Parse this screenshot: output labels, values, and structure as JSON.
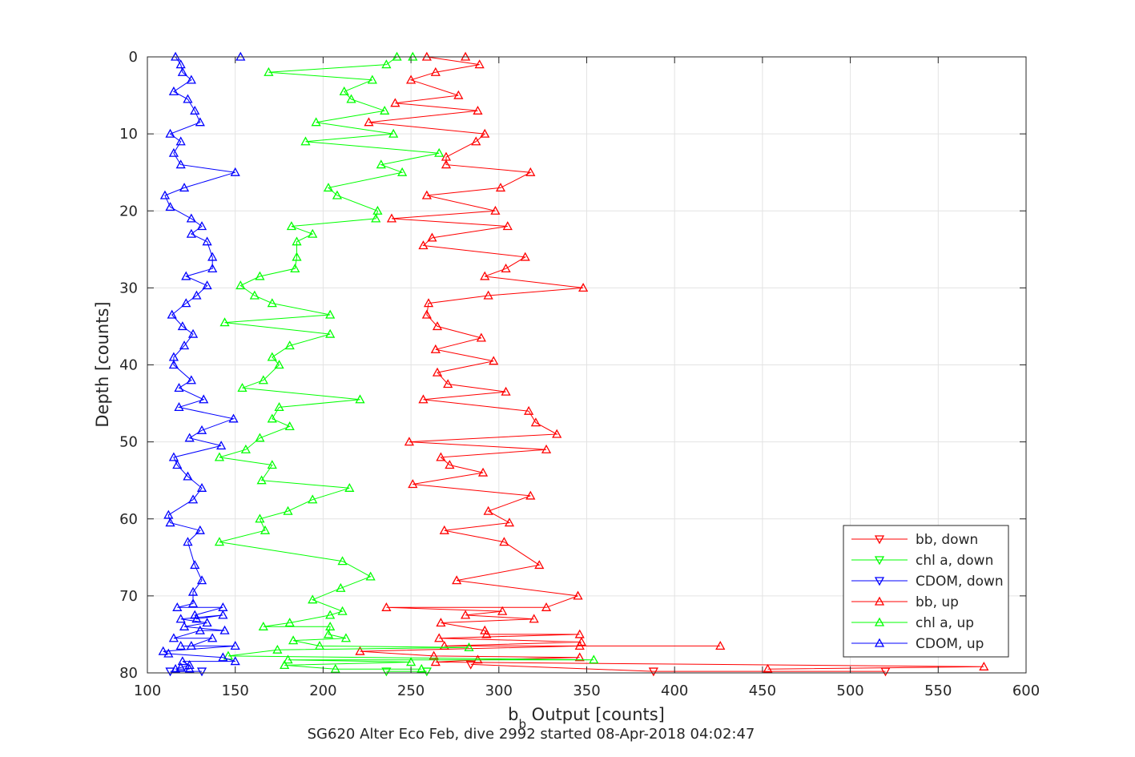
{
  "chart_data": {
    "type": "line",
    "title": "",
    "caption": "SG620 Alter Eco Feb, dive 2992 started 08-Apr-2018 04:02:47",
    "xlabel_main": "b",
    "xlabel_sub": "b",
    "xlabel_rest": " Output [counts]",
    "ylabel": "Depth [counts]",
    "xlim": [
      100,
      600
    ],
    "ylim": [
      0,
      80
    ],
    "y_reversed": true,
    "grid": true,
    "legend_position": "bottom-right",
    "xticks": [
      100,
      150,
      200,
      250,
      300,
      350,
      400,
      450,
      500,
      550,
      600
    ],
    "xtick_labels": [
      "100",
      "150",
      "200",
      "250",
      "300",
      "350",
      "400",
      "450",
      "500",
      "550",
      "600"
    ],
    "yticks": [
      0,
      10,
      20,
      30,
      40,
      50,
      60,
      70,
      80
    ],
    "ytick_labels": [
      "0",
      "10",
      "20",
      "30",
      "40",
      "50",
      "60",
      "70",
      "80"
    ],
    "series": [
      {
        "name": "bb, down",
        "color": "#ff0000",
        "marker": "triangle-down",
        "points": [
          [
            520,
            79.8
          ],
          [
            388,
            79.8
          ],
          [
            284,
            78.9
          ]
        ]
      },
      {
        "name": "chl a, down",
        "color": "#00ff00",
        "marker": "triangle-down",
        "points": [
          [
            259,
            79.8
          ],
          [
            236,
            79.8
          ]
        ]
      },
      {
        "name": "CDOM, down",
        "color": "#0000ff",
        "marker": "triangle-down",
        "points": [
          [
            113,
            79.8
          ],
          [
            131,
            79.8
          ]
        ]
      },
      {
        "name": "bb, up",
        "color": "#ff0000",
        "marker": "triangle-up",
        "points": [
          [
            281,
            0
          ],
          [
            259,
            0
          ],
          [
            289,
            1
          ],
          [
            264,
            2
          ],
          [
            250,
            3
          ],
          [
            277,
            5
          ],
          [
            241,
            6
          ],
          [
            288,
            7
          ],
          [
            226,
            8.5
          ],
          [
            292,
            10
          ],
          [
            287,
            11
          ],
          [
            270,
            13
          ],
          [
            270,
            14
          ],
          [
            318,
            15
          ],
          [
            301,
            17
          ],
          [
            259,
            18
          ],
          [
            298,
            20
          ],
          [
            239,
            21
          ],
          [
            305,
            22
          ],
          [
            262,
            23.5
          ],
          [
            257,
            24.5
          ],
          [
            315,
            26
          ],
          [
            304,
            27.5
          ],
          [
            292,
            28.5
          ],
          [
            348,
            30
          ],
          [
            294,
            31
          ],
          [
            260,
            32
          ],
          [
            259,
            33.5
          ],
          [
            265,
            35
          ],
          [
            290,
            36.5
          ],
          [
            264,
            38
          ],
          [
            297,
            39.5
          ],
          [
            265,
            41
          ],
          [
            271,
            42.5
          ],
          [
            304,
            43.5
          ],
          [
            257,
            44.5
          ],
          [
            317,
            46
          ],
          [
            321,
            47.5
          ],
          [
            333,
            49
          ],
          [
            249,
            50
          ],
          [
            327,
            51
          ],
          [
            267,
            52
          ],
          [
            272,
            53
          ],
          [
            291,
            54
          ],
          [
            251,
            55.5
          ],
          [
            318,
            57
          ],
          [
            294,
            59
          ],
          [
            306,
            60.5
          ],
          [
            269,
            61.5
          ],
          [
            303,
            63
          ],
          [
            323,
            66
          ],
          [
            276,
            68
          ],
          [
            345,
            70
          ],
          [
            327,
            71.5
          ],
          [
            236,
            71.5
          ],
          [
            302,
            72
          ],
          [
            281,
            72.5
          ],
          [
            320,
            73
          ],
          [
            267,
            73.5
          ],
          [
            292,
            74.5
          ],
          [
            293,
            75
          ],
          [
            346,
            75
          ],
          [
            266,
            75.5
          ],
          [
            347,
            76
          ],
          [
            269,
            76.5
          ],
          [
            426,
            76.5
          ],
          [
            346,
            76.5
          ],
          [
            221,
            77.2
          ],
          [
            263,
            77.8
          ],
          [
            346,
            78
          ],
          [
            288,
            78.3
          ],
          [
            264,
            78.6
          ],
          [
            576,
            79.2
          ],
          [
            453,
            79.5
          ]
        ]
      },
      {
        "name": "chl a, up",
        "color": "#00ff00",
        "marker": "triangle-up",
        "points": [
          [
            251,
            0
          ],
          [
            242,
            0
          ],
          [
            236,
            1
          ],
          [
            169,
            2
          ],
          [
            228,
            3
          ],
          [
            212,
            4.5
          ],
          [
            216,
            5.5
          ],
          [
            235,
            7
          ],
          [
            196,
            8.5
          ],
          [
            240,
            10
          ],
          [
            190,
            11
          ],
          [
            266,
            12.5
          ],
          [
            233,
            14
          ],
          [
            245,
            15
          ],
          [
            203,
            17
          ],
          [
            208,
            18
          ],
          [
            231,
            20
          ],
          [
            230,
            21
          ],
          [
            182,
            22
          ],
          [
            194,
            23
          ],
          [
            185,
            24
          ],
          [
            185,
            26
          ],
          [
            184,
            27.5
          ],
          [
            164,
            28.5
          ],
          [
            153,
            29.7
          ],
          [
            161,
            31
          ],
          [
            171,
            32
          ],
          [
            204,
            33.5
          ],
          [
            144,
            34.5
          ],
          [
            204,
            36
          ],
          [
            181,
            37.5
          ],
          [
            171,
            39
          ],
          [
            175,
            40
          ],
          [
            166,
            42
          ],
          [
            154,
            43
          ],
          [
            221,
            44.5
          ],
          [
            175,
            45.5
          ],
          [
            171,
            47
          ],
          [
            181,
            48
          ],
          [
            164,
            49.5
          ],
          [
            156,
            51
          ],
          [
            141,
            52
          ],
          [
            171,
            53
          ],
          [
            165,
            55
          ],
          [
            215,
            56
          ],
          [
            194,
            57.5
          ],
          [
            180,
            59
          ],
          [
            164,
            60
          ],
          [
            167,
            61.5
          ],
          [
            141,
            63
          ],
          [
            211,
            65.5
          ],
          [
            227,
            67.5
          ],
          [
            210,
            69
          ],
          [
            194,
            70.5
          ],
          [
            211,
            72
          ],
          [
            204,
            72.5
          ],
          [
            181,
            73.5
          ],
          [
            166,
            74
          ],
          [
            204,
            74
          ],
          [
            203,
            75
          ],
          [
            213,
            75.5
          ],
          [
            183,
            75.8
          ],
          [
            198,
            76.5
          ],
          [
            283,
            76.7
          ],
          [
            174,
            77
          ],
          [
            146,
            77.8
          ],
          [
            354,
            78.3
          ],
          [
            180,
            78.3
          ],
          [
            250,
            78.6
          ],
          [
            178,
            79
          ],
          [
            207,
            79.5
          ],
          [
            256,
            79.5
          ]
        ]
      },
      {
        "name": "CDOM, up",
        "color": "#0000ff",
        "marker": "triangle-up",
        "points": [
          [
            153,
            0
          ],
          [
            116,
            0
          ],
          [
            119,
            1
          ],
          [
            120,
            2
          ],
          [
            125,
            3
          ],
          [
            115,
            4.5
          ],
          [
            123,
            5.5
          ],
          [
            127,
            7
          ],
          [
            130,
            8.5
          ],
          [
            113,
            10
          ],
          [
            119,
            11
          ],
          [
            115,
            12.5
          ],
          [
            119,
            14
          ],
          [
            150,
            15
          ],
          [
            121,
            17
          ],
          [
            110,
            18
          ],
          [
            113,
            19.5
          ],
          [
            125,
            21
          ],
          [
            131,
            22
          ],
          [
            125,
            23
          ],
          [
            134,
            24
          ],
          [
            137,
            26
          ],
          [
            137,
            27.5
          ],
          [
            122,
            28.5
          ],
          [
            134,
            29.7
          ],
          [
            128,
            31
          ],
          [
            122,
            32
          ],
          [
            114,
            33.5
          ],
          [
            120,
            35
          ],
          [
            126,
            36
          ],
          [
            121,
            37.5
          ],
          [
            115,
            39
          ],
          [
            115,
            40
          ],
          [
            125,
            42
          ],
          [
            118,
            43
          ],
          [
            132,
            44.5
          ],
          [
            118,
            45.5
          ],
          [
            149,
            47
          ],
          [
            131,
            48.5
          ],
          [
            124,
            49.5
          ],
          [
            142,
            50.5
          ],
          [
            115,
            52
          ],
          [
            117,
            53
          ],
          [
            123,
            54.5
          ],
          [
            131,
            56
          ],
          [
            126,
            57.5
          ],
          [
            112,
            59.5
          ],
          [
            113,
            60.5
          ],
          [
            130,
            61.5
          ],
          [
            123,
            63
          ],
          [
            127,
            66
          ],
          [
            131,
            68
          ],
          [
            126,
            69.5
          ],
          [
            126,
            71
          ],
          [
            117,
            71.5
          ],
          [
            143,
            71.5
          ],
          [
            127,
            72.5
          ],
          [
            128,
            73
          ],
          [
            143,
            72.5
          ],
          [
            119,
            73
          ],
          [
            134,
            73.5
          ],
          [
            121,
            74
          ],
          [
            144,
            74.5
          ],
          [
            130,
            74.5
          ],
          [
            115,
            75.5
          ],
          [
            137,
            75.5
          ],
          [
            125,
            76.5
          ],
          [
            119,
            76.5
          ],
          [
            150,
            76.5
          ],
          [
            109,
            77.2
          ],
          [
            112,
            77.5
          ],
          [
            143,
            78
          ],
          [
            150,
            78.5
          ],
          [
            120,
            78.5
          ],
          [
            124,
            79
          ],
          [
            119,
            79.3
          ],
          [
            116,
            79.5
          ],
          [
            124,
            79.5
          ]
        ]
      }
    ]
  }
}
